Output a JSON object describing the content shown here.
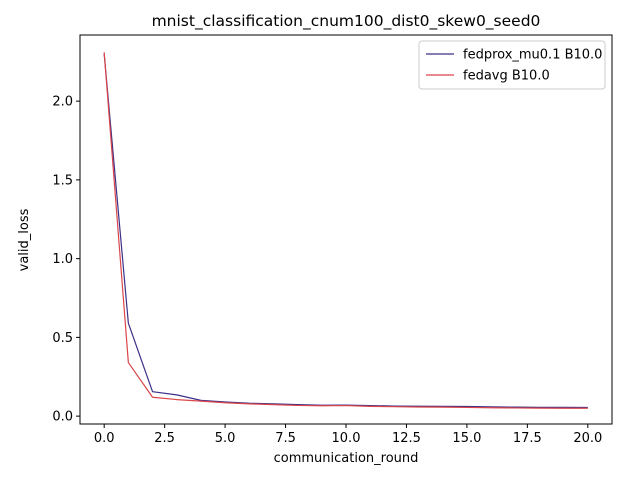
{
  "chart_data": {
    "type": "line",
    "title": "mnist_classification_cnum100_dist0_skew0_seed0",
    "xlabel": "communication_round",
    "ylabel": "valid_loss",
    "xlim": [
      -1.0,
      21.0
    ],
    "ylim": [
      -0.05,
      2.42
    ],
    "xticks": [
      0.0,
      2.5,
      5.0,
      7.5,
      10.0,
      12.5,
      15.0,
      17.5,
      20.0
    ],
    "xtick_labels": [
      "0.0",
      "2.5",
      "5.0",
      "7.5",
      "10.0",
      "12.5",
      "15.0",
      "17.5",
      "20.0"
    ],
    "yticks": [
      0.0,
      0.5,
      1.0,
      1.5,
      2.0
    ],
    "ytick_labels": [
      "0.0",
      "0.5",
      "1.0",
      "1.5",
      "2.0"
    ],
    "grid": false,
    "legend_position": "top-right",
    "series": [
      {
        "name": "fedprox_mu0.1 B10.0",
        "color": "#3b3188",
        "x": [
          0,
          1,
          2,
          3,
          4,
          5,
          6,
          7,
          8,
          9,
          10,
          11,
          12,
          13,
          14,
          15,
          16,
          17,
          18,
          19,
          20
        ],
        "y": [
          2.3,
          0.59,
          0.155,
          0.135,
          0.1,
          0.09,
          0.082,
          0.078,
          0.073,
          0.069,
          0.07,
          0.067,
          0.064,
          0.063,
          0.062,
          0.061,
          0.059,
          0.057,
          0.056,
          0.056,
          0.055
        ]
      },
      {
        "name": "fedavg B10.0",
        "color": "#d9464a",
        "x": [
          0,
          1,
          2,
          3,
          4,
          5,
          6,
          7,
          8,
          9,
          10,
          11,
          12,
          13,
          14,
          15,
          16,
          17,
          18,
          19,
          20
        ],
        "y": [
          2.31,
          0.34,
          0.12,
          0.105,
          0.095,
          0.085,
          0.078,
          0.073,
          0.068,
          0.066,
          0.067,
          0.062,
          0.06,
          0.058,
          0.057,
          0.055,
          0.053,
          0.052,
          0.051,
          0.05,
          0.05
        ]
      }
    ]
  }
}
